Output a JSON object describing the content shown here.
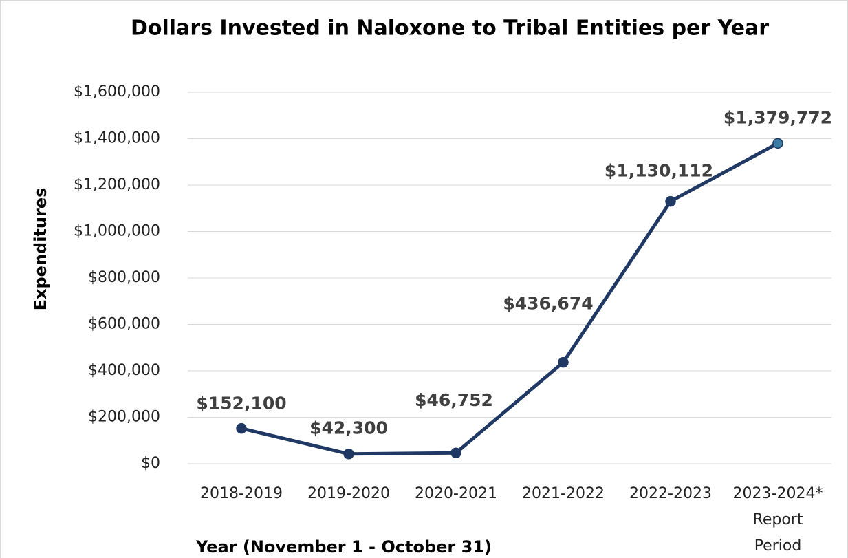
{
  "chart_data": {
    "type": "line",
    "title": "Dollars Invested in Naloxone to Tribal Entities per Year",
    "y_label": "Expenditures",
    "x_label": "Year (November 1 - October  31)",
    "categories": [
      "2018-2019",
      "2019-2020",
      "2020-2021",
      "2021-2022",
      "2022-2023",
      "2023-2024*\nReport\nPeriod"
    ],
    "series": [
      {
        "name": "Expenditures",
        "color": "#1f3864",
        "values": [
          152100,
          42300,
          46752,
          436674,
          1130112,
          1379772
        ],
        "value_labels": [
          "$152,100",
          "$42,300",
          "$46,752",
          "$436,674",
          "$1,130,112",
          "$1,379,772"
        ],
        "marker_colors": [
          "#1f3864",
          "#1f3864",
          "#1f3864",
          "#1f3864",
          "#1f3864",
          "#3a7ca5"
        ]
      }
    ],
    "ylim": [
      0,
      1600000
    ],
    "yticks": [
      {
        "value": 0,
        "label": "$0"
      },
      {
        "value": 200000,
        "label": "$200,000"
      },
      {
        "value": 400000,
        "label": "$400,000"
      },
      {
        "value": 600000,
        "label": "$600,000"
      },
      {
        "value": 800000,
        "label": "$800,000"
      },
      {
        "value": 1000000,
        "label": "$1,000,000"
      },
      {
        "value": 1200000,
        "label": "$1,200,000"
      },
      {
        "value": 1400000,
        "label": "$1,400,000"
      },
      {
        "value": 1600000,
        "label": "$1,600,000"
      }
    ],
    "grid": true
  }
}
